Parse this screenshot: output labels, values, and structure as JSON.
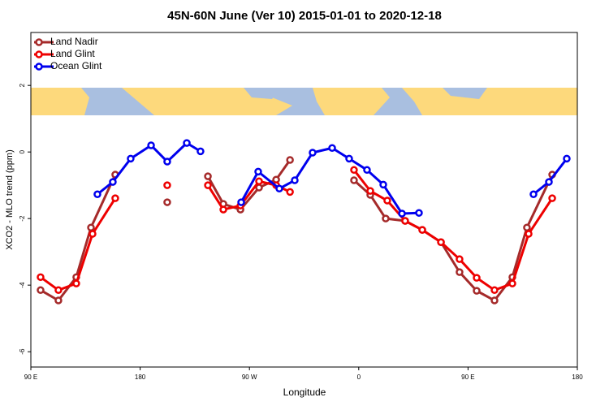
{
  "chart_data": {
    "type": "line",
    "title": "45N-60N June (Ver 10)   2015-01-01 to 2020-12-18",
    "x_label": "Longitude",
    "y_label": "XCO2 - MLO trend (ppm)",
    "xlim": [
      90,
      540
    ],
    "xticks": [
      {
        "value": 90,
        "label": "90 E"
      },
      180,
      {
        "value": 270,
        "label": "90 W"
      },
      {
        "value": 360,
        "label": "0"
      },
      {
        "value": 450,
        "label": "90 E"
      },
      {
        "value": 540,
        "label": "180"
      }
    ],
    "ylim": [
      -6.46,
      3.59
    ],
    "yticks": [
      2,
      0,
      -2,
      -4,
      -6
    ],
    "legend": "top-left",
    "series": [
      {
        "name": "Land Nadir",
        "color": "#a52a2a",
        "x": [
          98.0,
          112.7,
          127.4,
          139.5,
          159.5,
          null,
          202.3,
          null,
          235.8,
          248.5,
          262.6,
          277.9,
          292.0,
          303.4,
          null,
          356.1,
          369.5,
          382.2,
          398.2,
          412.3,
          427.7,
          443.0,
          457.1,
          471.8,
          486.5,
          498.5,
          519.3
        ],
        "values": [
          -4.15,
          -4.46,
          -3.76,
          -2.27,
          -0.68,
          null,
          -1.51,
          null,
          -0.73,
          -1.56,
          -1.73,
          -1.07,
          -0.83,
          -0.24,
          null,
          -0.85,
          -1.29,
          -2.0,
          -2.07,
          -2.34,
          -2.71,
          -3.61,
          -4.17,
          -4.46,
          -3.76,
          -2.27,
          -0.68
        ]
      },
      {
        "name": "Land Glint",
        "color": "#ee0000",
        "x": [
          98.0,
          112.7,
          127.4,
          140.8,
          159.5,
          null,
          202.3,
          null,
          235.8,
          248.5,
          262.6,
          277.9,
          292.0,
          303.4,
          null,
          356.1,
          369.5,
          383.5,
          398.2,
          412.3,
          427.7,
          443.0,
          457.1,
          471.8,
          486.5,
          499.9,
          519.3
        ],
        "values": [
          -3.76,
          -4.15,
          -3.95,
          -2.46,
          -1.39,
          null,
          -1.0,
          null,
          -1.0,
          -1.73,
          -1.61,
          -0.88,
          -1.0,
          -1.2,
          null,
          -0.54,
          -1.17,
          -1.46,
          -2.07,
          -2.34,
          -2.71,
          -3.22,
          -3.78,
          -4.15,
          -3.95,
          -2.46,
          -1.39
        ]
      },
      {
        "name": "Ocean Glint",
        "color": "#0000ee",
        "x": [
          144.8,
          157.5,
          172.2,
          189.0,
          202.3,
          218.4,
          229.7,
          null,
          263.2,
          277.2,
          294.6,
          307.3,
          322.0,
          338.1,
          352.1,
          366.8,
          380.2,
          395.6,
          409.6,
          null,
          503.9,
          516.6,
          531.3
        ],
        "values": [
          -1.27,
          -0.9,
          -0.2,
          0.2,
          -0.29,
          0.27,
          0.02,
          null,
          -1.51,
          -0.59,
          -1.1,
          -0.85,
          -0.02,
          0.12,
          -0.2,
          -0.54,
          -0.98,
          -1.85,
          -1.83,
          null,
          -1.27,
          -0.9,
          -0.2
        ]
      }
    ]
  }
}
